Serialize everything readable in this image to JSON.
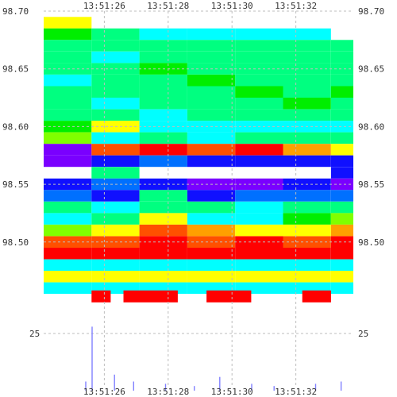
{
  "chart_data": {
    "type": "heatmap",
    "title": "",
    "xlabel": "",
    "ylabel": "",
    "x_tick_labels": [
      "13:51:26",
      "13:51:28",
      "13:51:30",
      "13:51:32"
    ],
    "y_tick_labels": [
      "98.70",
      "98.65",
      "98.60",
      "98.55",
      "98.50"
    ],
    "ylim": [
      98.462,
      98.7
    ],
    "volume_axis_label": "25",
    "x_range": [
      "13:51:24.1",
      "13:51:33.8"
    ],
    "grid": true,
    "colorscale": [
      "#7a00ff",
      "#1010ff",
      "#0070ff",
      "#00ffff",
      "#00ff80",
      "#00ee00",
      "#80ff00",
      "#ffff00",
      "#ffa000",
      "#ff5000",
      "#ff0000"
    ],
    "columns": [
      {
        "t": "13:51:24.1",
        "rows": {
          "98.70": null,
          "98.69": 7,
          "98.68": 5,
          "98.67": 4,
          "98.66": 4,
          "98.65": 4,
          "98.64": 3,
          "98.63": 4,
          "98.62": 4,
          "98.61": 4,
          "98.60": 5,
          "98.59": 6,
          "98.58": 0,
          "98.57": 0,
          "98.56": null,
          "98.55": 1,
          "98.54": 2,
          "98.53": 4,
          "98.52": 3,
          "98.51": 6,
          "98.50": 9,
          "98.49": 10,
          "98.48": 3,
          "98.47": 7,
          "98.46": 3
        }
      },
      {
        "t": "13:51:25.6",
        "rows": {
          "98.70": null,
          "98.69": null,
          "98.68": 4,
          "98.67": 4,
          "98.66": 3,
          "98.65": 4,
          "98.64": 4,
          "98.63": 4,
          "98.62": 3,
          "98.61": 4,
          "98.60": 7,
          "98.59": 3,
          "98.58": 9,
          "98.57": 1,
          "98.56": 4,
          "98.55": 2,
          "98.54": 1,
          "98.53": 3,
          "98.52": 4,
          "98.51": 7,
          "98.50": 9,
          "98.49": 10,
          "98.48": 3,
          "98.47": 7,
          "98.46": 3
        }
      },
      {
        "t": "13:51:27.1",
        "rows": {
          "98.70": null,
          "98.69": null,
          "98.68": 3,
          "98.67": 4,
          "98.66": 4,
          "98.65": 5,
          "98.64": 4,
          "98.63": 4,
          "98.62": 4,
          "98.61": 3,
          "98.60": 3,
          "98.59": 4,
          "98.58": 10,
          "98.57": 2,
          "98.56": null,
          "98.55": 1,
          "98.54": 4,
          "98.53": 4,
          "98.52": 7,
          "98.51": 9,
          "98.50": 10,
          "98.49": 10,
          "98.48": 3,
          "98.47": 7,
          "98.46": 3
        }
      },
      {
        "t": "13:51:28.6",
        "rows": {
          "98.70": null,
          "98.69": null,
          "98.68": 3,
          "98.67": 4,
          "98.66": 4,
          "98.65": 4,
          "98.64": 5,
          "98.63": 4,
          "98.62": 4,
          "98.61": 4,
          "98.60": 3,
          "98.59": 3,
          "98.58": 9,
          "98.57": 1,
          "98.56": null,
          "98.55": 0,
          "98.54": 1,
          "98.53": 4,
          "98.52": 3,
          "98.51": 8,
          "98.50": 9,
          "98.49": 10,
          "98.48": 3,
          "98.47": 7,
          "98.46": 3
        }
      },
      {
        "t": "13:51:30.1",
        "rows": {
          "98.70": null,
          "98.69": null,
          "98.68": 3,
          "98.67": 4,
          "98.66": 4,
          "98.65": 4,
          "98.64": 4,
          "98.63": 5,
          "98.62": 4,
          "98.61": 4,
          "98.60": 3,
          "98.59": 4,
          "98.58": 10,
          "98.57": 1,
          "98.56": null,
          "98.55": 0,
          "98.54": 2,
          "98.53": 3,
          "98.52": 3,
          "98.51": 7,
          "98.50": 10,
          "98.49": 10,
          "98.48": 3,
          "98.47": 7,
          "98.46": 3
        }
      },
      {
        "t": "13:51:31.6",
        "rows": {
          "98.70": null,
          "98.69": null,
          "98.68": 3,
          "98.67": 4,
          "98.66": 4,
          "98.65": 4,
          "98.64": 4,
          "98.63": 4,
          "98.62": 5,
          "98.61": 4,
          "98.60": 3,
          "98.59": 4,
          "98.58": 8,
          "98.57": 1,
          "98.56": null,
          "98.55": 1,
          "98.54": 2,
          "98.53": 4,
          "98.52": 5,
          "98.51": 7,
          "98.50": 9,
          "98.49": 10,
          "98.48": 3,
          "98.47": 7,
          "98.46": 3
        }
      },
      {
        "t": "13:51:33.1",
        "rows": {
          "98.70": null,
          "98.69": null,
          "98.68": null,
          "98.67": 4,
          "98.66": 4,
          "98.65": 4,
          "98.64": 4,
          "98.63": 5,
          "98.62": 4,
          "98.61": 4,
          "98.60": 3,
          "98.59": 4,
          "98.58": 7,
          "98.57": 1,
          "98.56": 1,
          "98.55": 0,
          "98.54": 2,
          "98.53": 4,
          "98.52": 6,
          "98.51": 8,
          "98.50": 10,
          "98.49": 10,
          "98.48": 3,
          "98.47": 7,
          "98.46": 3
        }
      }
    ],
    "red_markers": [
      {
        "t_start": "13:51:25.6",
        "t_end": "13:51:26.2"
      },
      {
        "t_start": "13:51:26.6",
        "t_end": "13:51:28.3"
      },
      {
        "t_start": "13:51:29.2",
        "t_end": "13:51:30.6"
      },
      {
        "t_start": "13:51:32.2",
        "t_end": "13:51:33.1"
      }
    ],
    "volume_bars": [
      {
        "t": "13:51:25.6",
        "v": 28
      },
      {
        "t": "13:51:25.4",
        "v": 4
      },
      {
        "t": "13:51:26.3",
        "v": 7
      },
      {
        "t": "13:51:26.9",
        "v": 4
      },
      {
        "t": "13:51:27.9",
        "v": 3
      },
      {
        "t": "13:51:28.8",
        "v": 2
      },
      {
        "t": "13:51:29.6",
        "v": 6
      },
      {
        "t": "13:51:30.6",
        "v": 3
      },
      {
        "t": "13:51:31.3",
        "v": 2
      },
      {
        "t": "13:51:32.6",
        "v": 3
      },
      {
        "t": "13:51:33.4",
        "v": 4
      }
    ],
    "volume_ylim": [
      0,
      30
    ],
    "bar_color": "#8080ff",
    "marker_color": "#ff0000"
  }
}
